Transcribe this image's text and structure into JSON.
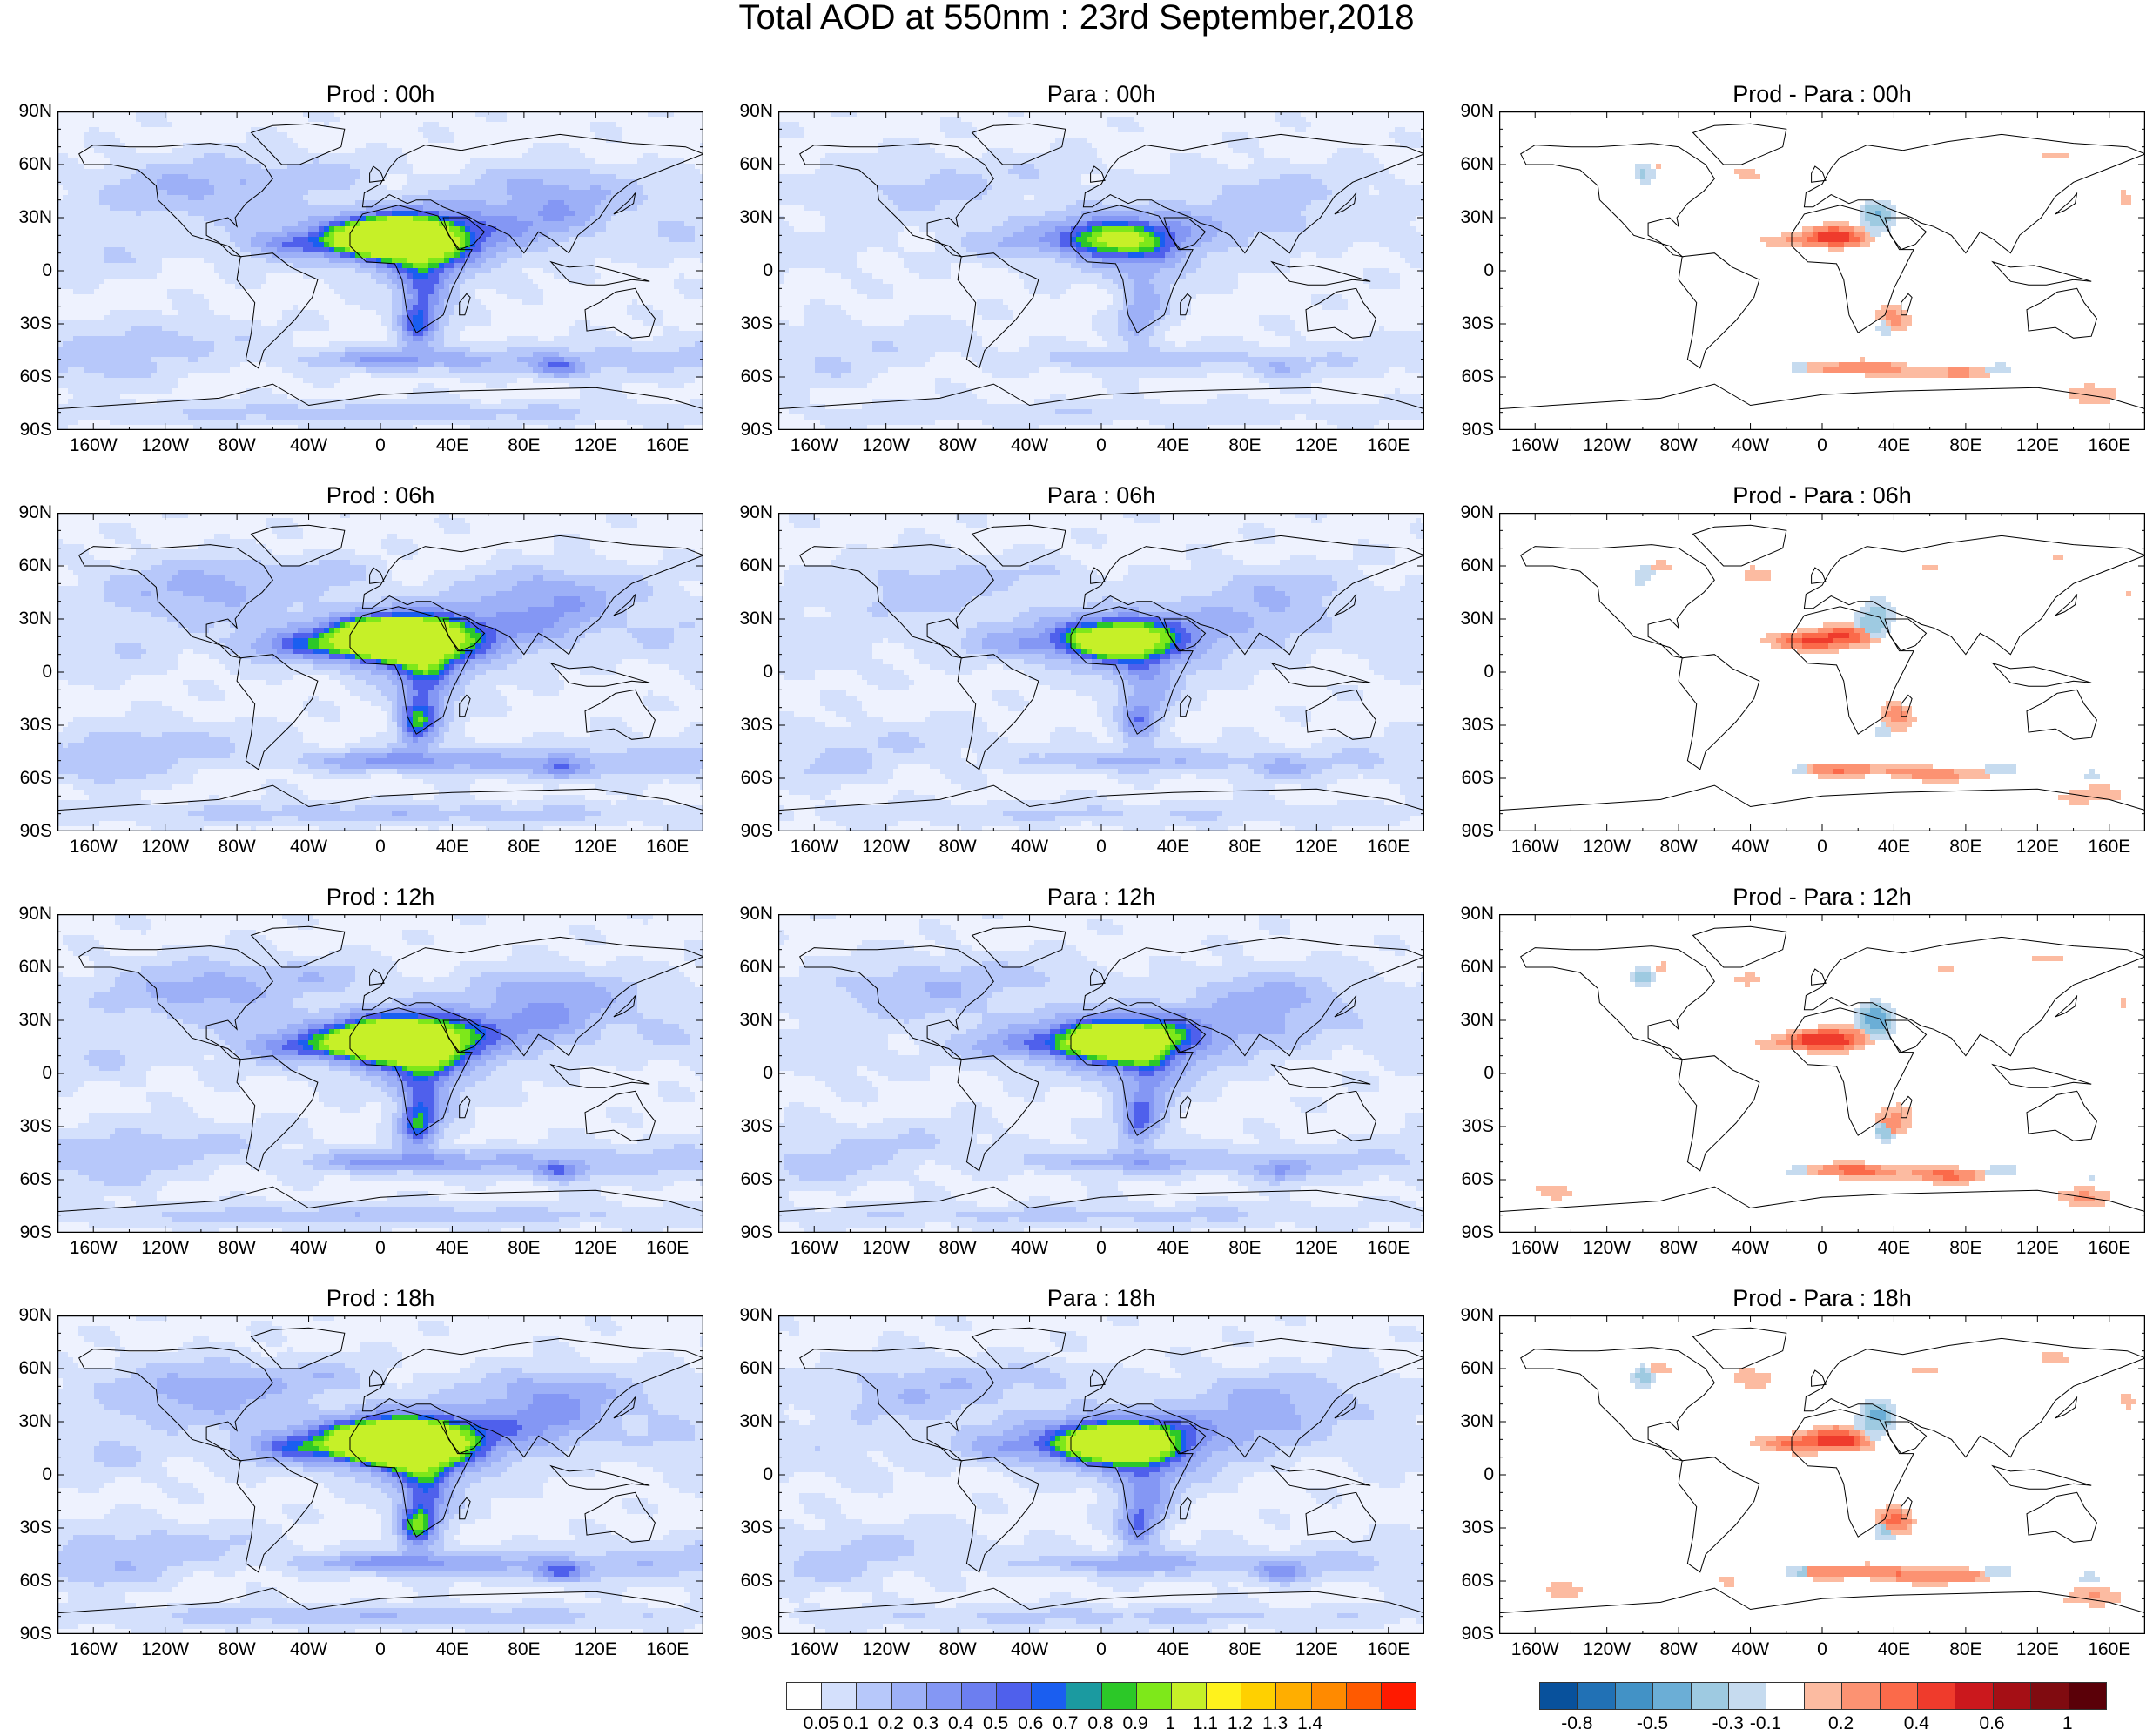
{
  "title": "Total AOD at 550nm : 23rd September,2018",
  "lat_ticks": [
    "90N",
    "60N",
    "30N",
    "0",
    "30S",
    "60S",
    "90S"
  ],
  "lon_ticks": [
    "160W",
    "120W",
    "80W",
    "40W",
    "0",
    "40E",
    "80E",
    "120E",
    "160E"
  ],
  "panels": [
    {
      "title": "Prod : 00h",
      "kind": "aod",
      "level": 0.7
    },
    {
      "title": "Para : 00h",
      "kind": "aod",
      "level": 0.4
    },
    {
      "title": "Prod - Para : 00h",
      "kind": "diff",
      "level": 0.5
    },
    {
      "title": "Prod : 06h",
      "kind": "aod",
      "level": 0.75
    },
    {
      "title": "Para : 06h",
      "kind": "aod",
      "level": 0.5
    },
    {
      "title": "Prod - Para : 06h",
      "kind": "diff",
      "level": 0.55
    },
    {
      "title": "Prod : 12h",
      "kind": "aod",
      "level": 0.75
    },
    {
      "title": "Para : 12h",
      "kind": "aod",
      "level": 0.6
    },
    {
      "title": "Prod - Para : 12h",
      "kind": "diff",
      "level": 0.6
    },
    {
      "title": "Prod : 18h",
      "kind": "aod",
      "level": 0.8
    },
    {
      "title": "Para : 18h",
      "kind": "aod",
      "level": 0.6
    },
    {
      "title": "Prod - Para : 18h",
      "kind": "diff",
      "level": 0.6
    }
  ],
  "aod_colorbar": {
    "colors": [
      "#ffffff",
      "#d4e0fc",
      "#b7c8fa",
      "#9db0f7",
      "#8497f4",
      "#6c7ef0",
      "#4f60ec",
      "#1a5ef0",
      "#1b9aa0",
      "#2cc828",
      "#7ee81a",
      "#c6f028",
      "#fff21c",
      "#ffd000",
      "#ffae00",
      "#ff8a00",
      "#ff5a00",
      "#ff1a00"
    ],
    "labels": [
      "0.05",
      "0.1",
      "0.2",
      "0.3",
      "0.4",
      "0.5",
      "0.6",
      "0.7",
      "0.8",
      "0.9",
      "1",
      "1.1",
      "1.2",
      "1.3",
      "1.4"
    ]
  },
  "diff_colorbar": {
    "colors": [
      "#08519c",
      "#2171b5",
      "#4292c6",
      "#6baed6",
      "#9ecae1",
      "#c6dbef",
      "#ffffff",
      "#fcbba1",
      "#fc9272",
      "#fb6a4a",
      "#ef3b2c",
      "#cb181d",
      "#a50f15",
      "#800b10",
      "#5a0008"
    ],
    "labels": [
      "-0.8",
      "-0.5",
      "-0.3",
      "-0.1",
      "0.2",
      "0.4",
      "0.6",
      "1"
    ]
  }
}
